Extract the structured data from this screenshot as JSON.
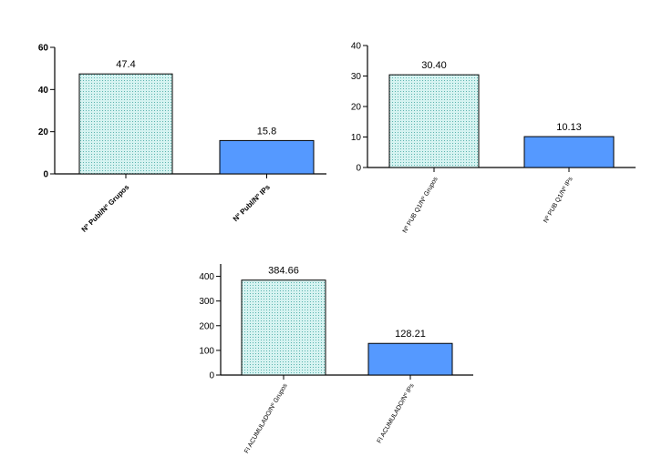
{
  "colors": {
    "dotted_fill_bg": "#d6f3f1",
    "dotted_fill_dot": "#5ab3ae",
    "solid_fill": "#5599ff",
    "axis": "#000000"
  },
  "chart_data": [
    {
      "type": "bar",
      "categories": [
        "Nº Publ/Nº Grupos",
        "Nº Publ/Nº IPs"
      ],
      "values": [
        47.4,
        15.8
      ],
      "value_labels": [
        "47.4",
        "15.8"
      ],
      "yticks": [
        "0",
        "20",
        "40",
        "60"
      ],
      "ylim": [
        0,
        60
      ],
      "title": "",
      "xlabel": "",
      "ylabel": "",
      "grid": false
    },
    {
      "type": "bar",
      "categories": [
        "Nº PUB Q1/Nº Grupos",
        "Nº PUB Q1/Nº IPs"
      ],
      "values": [
        30.4,
        10.13
      ],
      "value_labels": [
        "30.40",
        "10.13"
      ],
      "yticks": [
        "0",
        "10",
        "20",
        "30",
        "40"
      ],
      "ylim": [
        0,
        40
      ],
      "title": "",
      "xlabel": "",
      "ylabel": "",
      "grid": false
    },
    {
      "type": "bar",
      "categories": [
        "FI ACUMULADO/Nº Grupos",
        "FI ACUMULADO/Nº IPs"
      ],
      "values": [
        384.66,
        128.21
      ],
      "value_labels": [
        "384.66",
        "128.21"
      ],
      "yticks": [
        "0",
        "100",
        "200",
        "300",
        "400"
      ],
      "ylim": [
        0,
        450
      ],
      "title": "",
      "xlabel": "",
      "ylabel": "",
      "grid": false
    }
  ]
}
